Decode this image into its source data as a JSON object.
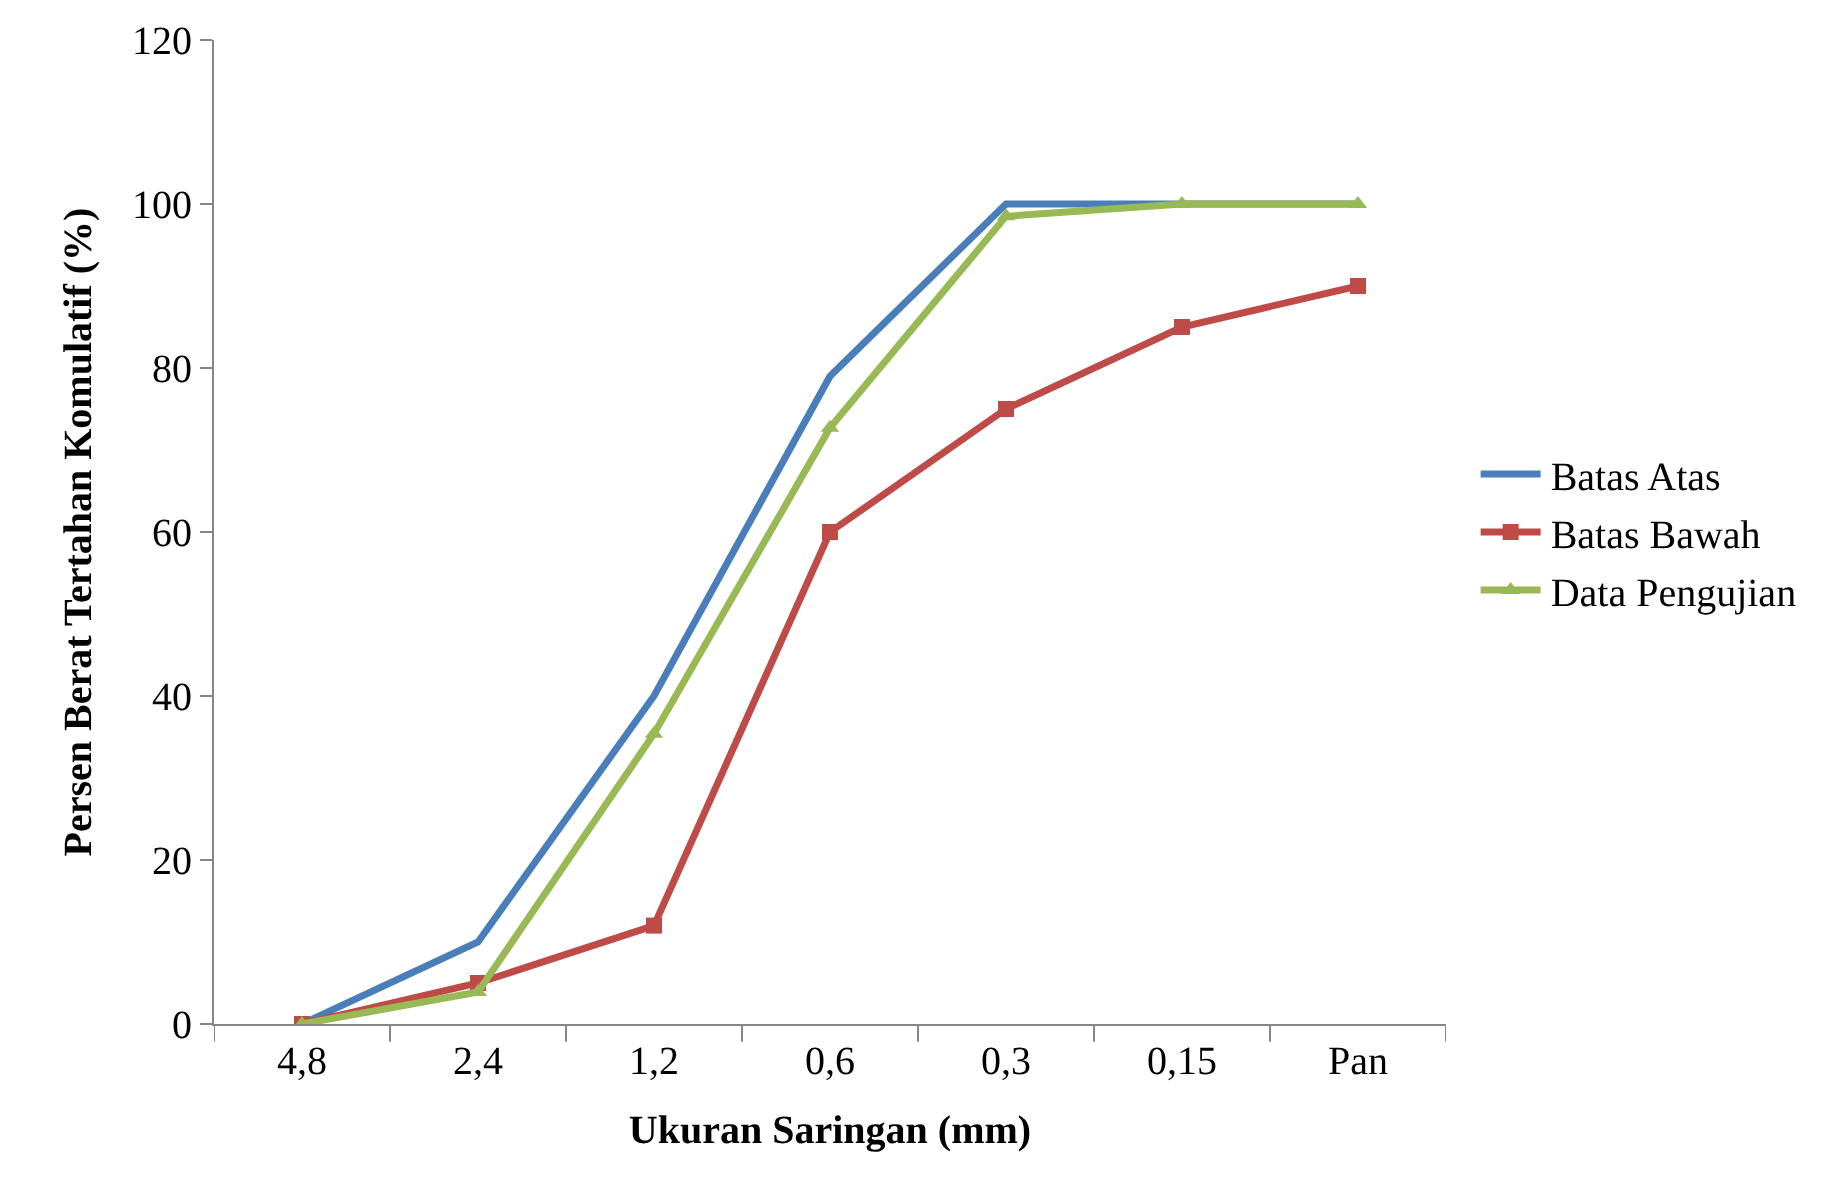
{
  "chart_data": {
    "type": "line",
    "xlabel": "Ukuran Saringan (mm)",
    "ylabel": "Persen Berat Tertahan Komulatif (%)",
    "categories": [
      "4,8",
      "2,4",
      "1,2",
      "0,6",
      "0,3",
      "0,15",
      "Pan"
    ],
    "series": [
      {
        "name": "Batas Atas",
        "color": "#4a7ebb",
        "marker": "none",
        "values": [
          0,
          10,
          40,
          79,
          100,
          100,
          100
        ]
      },
      {
        "name": "Batas Bawah",
        "color": "#be4b48",
        "marker": "square",
        "values": [
          0,
          5,
          12,
          60,
          75,
          85,
          90
        ]
      },
      {
        "name": "Data Pengujian",
        "color": "#98b954",
        "marker": "triangle",
        "values": [
          0,
          3.9,
          35.4,
          72.7,
          98.5,
          100,
          100
        ]
      }
    ],
    "ylim": [
      0,
      120
    ],
    "yticks": [
      0,
      20,
      40,
      60,
      80,
      100,
      120
    ],
    "grid": false,
    "legend": "right",
    "line_style": "solid"
  }
}
